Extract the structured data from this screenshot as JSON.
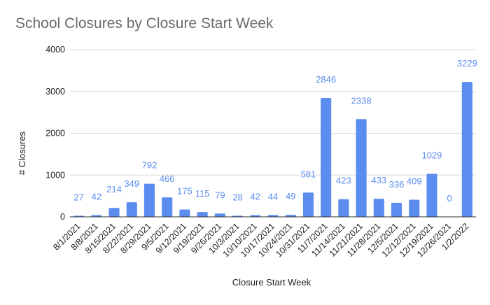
{
  "chart_data": {
    "type": "bar",
    "title": "School Closures by Closure Start Week",
    "xlabel": "Closure Start Week",
    "ylabel": "# Closures",
    "ylim": [
      0,
      4000
    ],
    "yticks": [
      0,
      1000,
      2000,
      3000,
      4000
    ],
    "grid": true,
    "legend": "none",
    "bar_color": "#5b8def",
    "categories": [
      "8/1/2021",
      "8/8/2021",
      "8/15/2021",
      "8/22/2021",
      "8/29/2021",
      "9/5/2021",
      "9/12/2021",
      "9/19/2021",
      "9/26/2021",
      "10/3/2021",
      "10/10/2021",
      "10/17/2021",
      "10/24/2021",
      "10/31/2021",
      "11/7/2021",
      "11/14/2021",
      "11/21/2021",
      "11/28/2021",
      "12/5/2021",
      "12/12/2021",
      "12/19/2021",
      "12/26/2021",
      "1/2/2022"
    ],
    "values": [
      27,
      42,
      214,
      349,
      792,
      466,
      175,
      115,
      79,
      28,
      42,
      44,
      49,
      581,
      2846,
      423,
      2338,
      433,
      336,
      409,
      1029,
      0,
      3229
    ]
  }
}
